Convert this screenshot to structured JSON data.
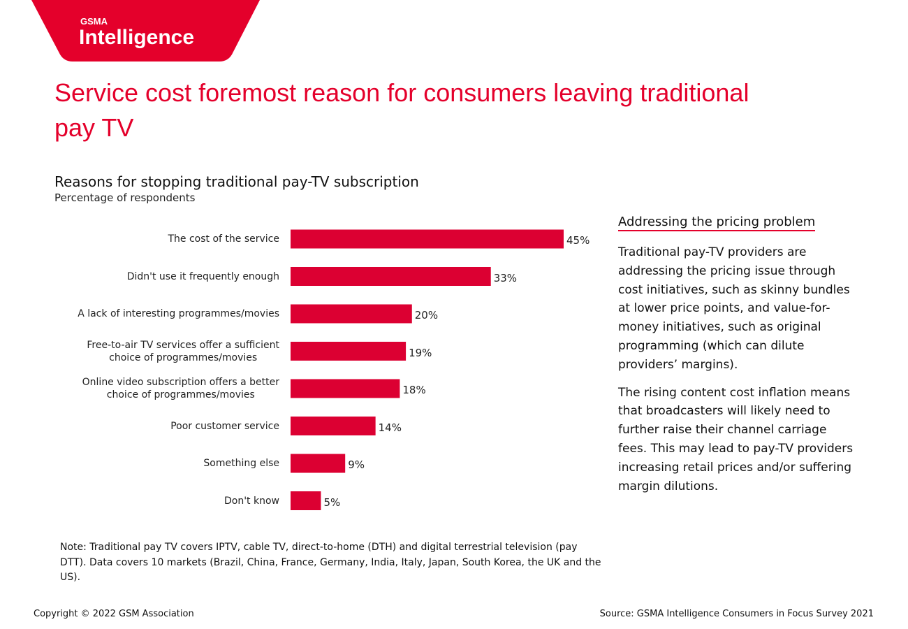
{
  "logo": {
    "brand": "GSMA",
    "name": "Intelligence"
  },
  "headline": "Service cost foremost reason for consumers leaving traditional pay TV",
  "chart_data": {
    "type": "bar",
    "orientation": "horizontal",
    "title": "Reasons for stopping traditional pay-TV subscription",
    "subtitle": "Percentage of respondents",
    "categories": [
      "The cost of the service",
      "Didn't use it frequently enough",
      "A lack of interesting programmes/movies",
      "Free-to-air TV services offer a sufficient\nchoice of programmes/movies",
      "Online video subscription offers a better\nchoice of programmes/movies",
      "Poor customer service",
      "Something else",
      "Don't know"
    ],
    "values": [
      45,
      33,
      20,
      19,
      18,
      14,
      9,
      5
    ],
    "value_labels": [
      "45%",
      "33%",
      "20%",
      "19%",
      "18%",
      "14%",
      "9%",
      "5%"
    ],
    "color": "#dc0032"
  },
  "sidebar": {
    "heading": "Addressing the pricing problem",
    "paragraphs": [
      "Traditional pay-TV providers are addressing the pricing issue through cost initiatives, such as skinny bundles at lower price points, and value-for-money initiatives, such as original programming (which can dilute providers’ margins).",
      "The rising content cost inflation means that broadcasters will likely need to further raise their channel carriage fees. This may lead to pay-TV providers increasing retail prices and/or suffering margin dilutions."
    ]
  },
  "note": "Note: Traditional pay TV covers IPTV, cable TV, direct-to-home (DTH) and digital terrestrial television (pay DTT). Data covers 10 markets (Brazil, China, France, Germany, India, Italy, Japan, South Korea, the UK and the US).",
  "footer": {
    "copyright": "Copyright © 2022 GSM Association",
    "source": "Source: GSMA Intelligence Consumers in Focus Survey 2021"
  }
}
